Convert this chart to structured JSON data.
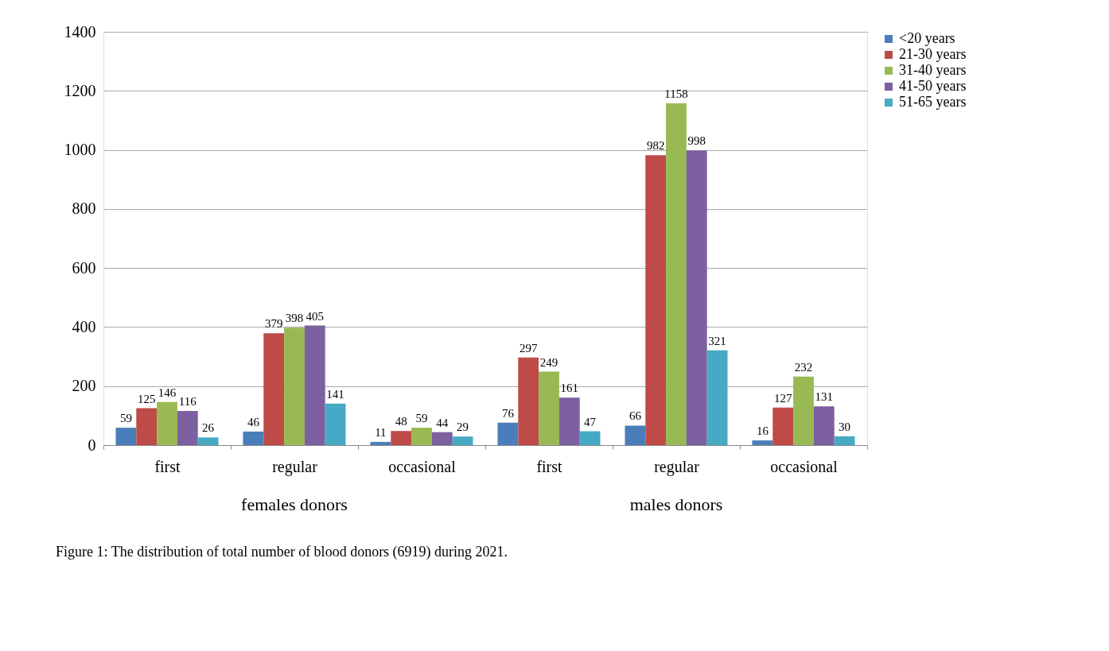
{
  "chart_data": {
    "type": "bar",
    "categories": [
      "first",
      "regular",
      "occasional",
      "first",
      "regular",
      "occasional"
    ],
    "series": [
      {
        "name": "<20 years",
        "color": "#4a7ebb",
        "values": [
          59,
          46,
          11,
          76,
          66,
          16
        ]
      },
      {
        "name": "21-30 years",
        "color": "#be4b48",
        "values": [
          125,
          379,
          48,
          297,
          982,
          127
        ]
      },
      {
        "name": "31-40 years",
        "color": "#98b954",
        "values": [
          146,
          398,
          59,
          249,
          1158,
          232
        ]
      },
      {
        "name": "41-50 years",
        "color": "#7d60a0",
        "values": [
          116,
          405,
          44,
          161,
          998,
          131
        ]
      },
      {
        "name": "51-65 years",
        "color": "#46aac5",
        "values": [
          26,
          141,
          29,
          47,
          321,
          30
        ]
      }
    ],
    "ylim": [
      0,
      1400
    ],
    "yticks": [
      0,
      200,
      400,
      600,
      800,
      1000,
      1200,
      1400
    ],
    "grid": "y",
    "legend": "right",
    "data_labels": true,
    "annotations": [
      "females donors",
      "males donors",
      "Figure 1: The distribution of total number of blood donors (6919) during 2021."
    ]
  }
}
